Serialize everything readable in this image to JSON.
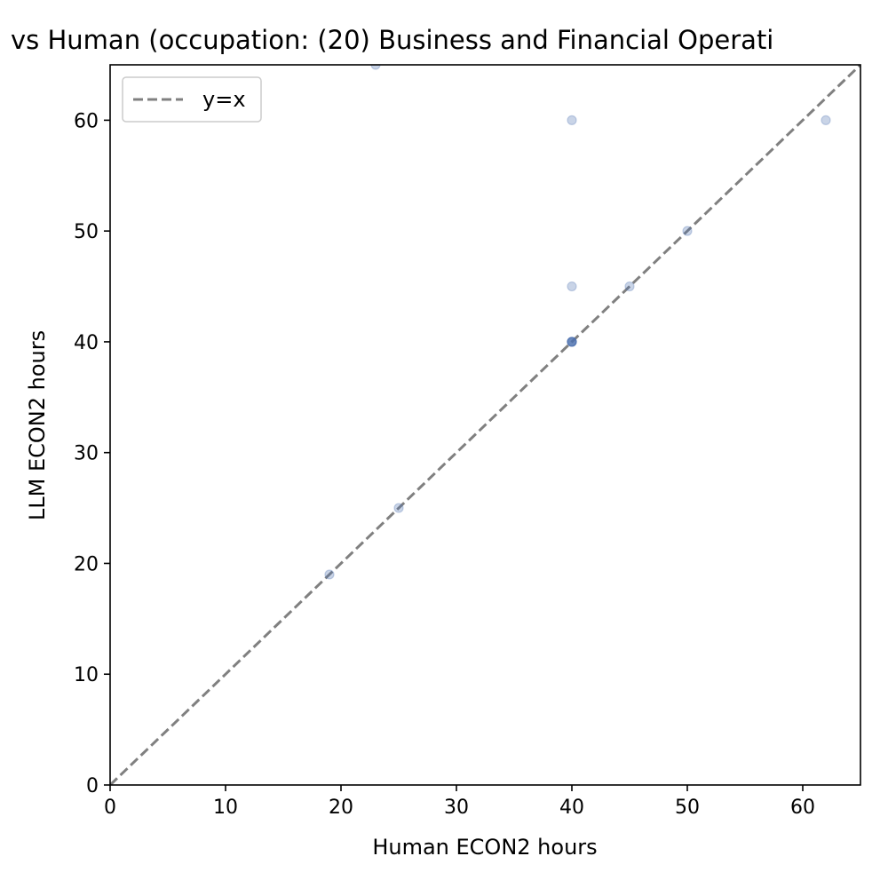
{
  "chart_data": {
    "type": "scatter",
    "title": "vs Human (occupation: (20) Business and Financial Operati",
    "xlabel": "Human ECON2 hours",
    "ylabel": "LLM ECON2 hours",
    "xlim": [
      0,
      65
    ],
    "ylim": [
      0,
      65
    ],
    "xticks": [
      0,
      10,
      20,
      30,
      40,
      50,
      60
    ],
    "yticks": [
      0,
      10,
      20,
      30,
      40,
      50,
      60
    ],
    "grid": false,
    "legend": {
      "placement": "top-left",
      "entries": [
        "y=x"
      ]
    },
    "reference_line": {
      "label": "y=x",
      "from": [
        0,
        0
      ],
      "to": [
        65,
        65
      ],
      "style": "dashed",
      "color": "#808080"
    },
    "points": [
      {
        "x": 19,
        "y": 19
      },
      {
        "x": 23,
        "y": 65
      },
      {
        "x": 25,
        "y": 25
      },
      {
        "x": 40,
        "y": 40
      },
      {
        "x": 40,
        "y": 40
      },
      {
        "x": 40,
        "y": 40
      },
      {
        "x": 40,
        "y": 40
      },
      {
        "x": 40,
        "y": 40
      },
      {
        "x": 40,
        "y": 45
      },
      {
        "x": 40,
        "y": 60
      },
      {
        "x": 45,
        "y": 45
      },
      {
        "x": 50,
        "y": 50
      },
      {
        "x": 62,
        "y": 60
      }
    ],
    "point_color": "#4c72b0"
  }
}
